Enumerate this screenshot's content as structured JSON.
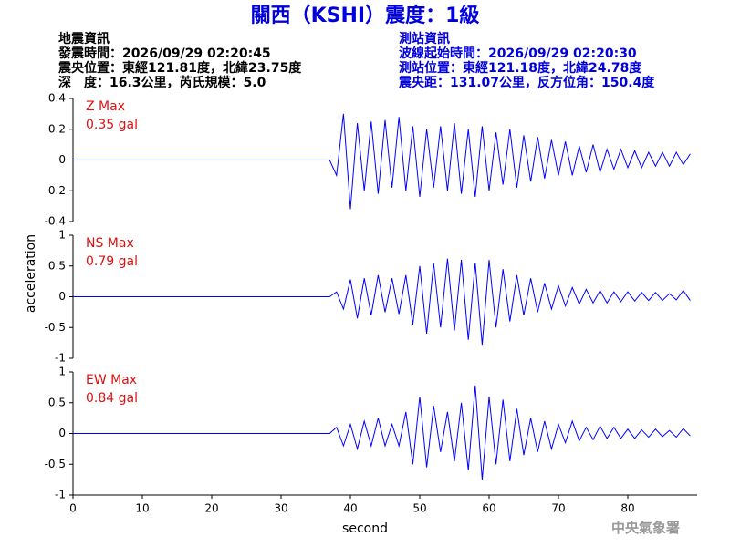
{
  "header": {
    "title": "關西（KSHI）震度：1級",
    "left": [
      "地震資訊",
      "發震時間：2026/09/29 02:20:45",
      "震央位置：東經121.81度，北緯23.75度",
      "深　度：16.3公里，芮氏規模：5.0"
    ],
    "right": [
      "測站資訊",
      "波線起始時間：2026/09/29 02:20:30",
      "測站位置：東經121.18度，北緯24.78度",
      "震央距：131.07公里，反方位角：150.4度"
    ]
  },
  "axis_labels": {
    "y": "acceleration",
    "x": "second"
  },
  "footer": "中央氣象署",
  "chart_data": [
    {
      "type": "line",
      "annotation": "Z Max",
      "max_label": "0.35 gal",
      "color": "#0000ff",
      "x": [
        0,
        37,
        38,
        39,
        40,
        41,
        42,
        43,
        44,
        45,
        46,
        47,
        48,
        49,
        50,
        51,
        52,
        53,
        54,
        55,
        56,
        57,
        58,
        59,
        60,
        61,
        62,
        63,
        64,
        65,
        66,
        67,
        68,
        69,
        70,
        71,
        72,
        73,
        74,
        75,
        76,
        77,
        78,
        79,
        80,
        81,
        82,
        83,
        84,
        85,
        86,
        87,
        88,
        89
      ],
      "values": [
        0,
        0,
        -0.1,
        0.3,
        -0.32,
        0.24,
        -0.2,
        0.25,
        -0.22,
        0.26,
        -0.18,
        0.28,
        -0.2,
        0.22,
        -0.24,
        0.2,
        -0.18,
        0.22,
        -0.2,
        0.24,
        -0.22,
        0.2,
        -0.24,
        0.22,
        -0.2,
        0.18,
        -0.16,
        0.2,
        -0.18,
        0.16,
        -0.14,
        0.15,
        -0.12,
        0.13,
        -0.1,
        0.12,
        -0.1,
        0.09,
        -0.08,
        0.1,
        -0.08,
        0.07,
        -0.06,
        0.07,
        -0.05,
        0.06,
        -0.05,
        0.05,
        -0.04,
        0.05,
        -0.04,
        0.05,
        -0.03,
        0.04
      ],
      "xlim": [
        0,
        90
      ],
      "ylim": [
        -0.4,
        0.4
      ],
      "yticks": [
        -0.4,
        -0.2,
        0,
        0.2,
        0.4
      ]
    },
    {
      "type": "line",
      "annotation": "NS Max",
      "max_label": "0.79 gal",
      "color": "#0000ff",
      "x": [
        0,
        37,
        38,
        39,
        40,
        41,
        42,
        43,
        44,
        45,
        46,
        47,
        48,
        49,
        50,
        51,
        52,
        53,
        54,
        55,
        56,
        57,
        58,
        59,
        60,
        61,
        62,
        63,
        64,
        65,
        66,
        67,
        68,
        69,
        70,
        71,
        72,
        73,
        74,
        75,
        76,
        77,
        78,
        79,
        80,
        81,
        82,
        83,
        84,
        85,
        86,
        87,
        88,
        89
      ],
      "values": [
        0,
        0,
        0.08,
        -0.2,
        0.28,
        -0.35,
        0.3,
        -0.3,
        0.35,
        -0.25,
        0.3,
        -0.28,
        0.35,
        -0.45,
        0.5,
        -0.6,
        0.55,
        -0.5,
        0.62,
        -0.55,
        0.6,
        -0.7,
        0.55,
        -0.78,
        0.6,
        -0.5,
        0.45,
        -0.4,
        0.35,
        -0.3,
        0.3,
        -0.25,
        0.22,
        -0.2,
        0.18,
        -0.15,
        0.15,
        -0.12,
        0.12,
        -0.1,
        0.1,
        -0.1,
        0.08,
        -0.08,
        0.08,
        -0.07,
        0.07,
        -0.06,
        0.07,
        -0.06,
        0.05,
        -0.05,
        0.1,
        -0.06
      ],
      "xlim": [
        0,
        90
      ],
      "ylim": [
        -1,
        1
      ],
      "yticks": [
        -1,
        -0.5,
        0,
        0.5,
        1
      ]
    },
    {
      "type": "line",
      "annotation": "EW Max",
      "max_label": "0.84 gal",
      "color": "#0000ff",
      "x": [
        0,
        37,
        38,
        39,
        40,
        41,
        42,
        43,
        44,
        45,
        46,
        47,
        48,
        49,
        50,
        51,
        52,
        53,
        54,
        55,
        56,
        57,
        58,
        59,
        60,
        61,
        62,
        63,
        64,
        65,
        66,
        67,
        68,
        69,
        70,
        71,
        72,
        73,
        74,
        75,
        76,
        77,
        78,
        79,
        80,
        81,
        82,
        83,
        84,
        85,
        86,
        87,
        88,
        89
      ],
      "values": [
        0,
        0,
        0.1,
        -0.2,
        0.15,
        -0.25,
        0.2,
        -0.2,
        0.25,
        -0.2,
        0.15,
        -0.2,
        0.35,
        -0.5,
        0.6,
        -0.55,
        0.45,
        -0.3,
        0.35,
        -0.45,
        0.5,
        -0.6,
        0.78,
        -0.75,
        0.6,
        -0.5,
        0.55,
        -0.45,
        0.4,
        -0.35,
        0.25,
        -0.3,
        0.2,
        -0.25,
        0.15,
        -0.15,
        0.2,
        -0.12,
        0.1,
        -0.1,
        0.12,
        -0.08,
        0.1,
        -0.08,
        0.07,
        -0.08,
        0.06,
        -0.06,
        0.07,
        -0.05,
        0.05,
        -0.06,
        0.08,
        -0.04
      ],
      "xlim": [
        0,
        90
      ],
      "ylim": [
        -1,
        1
      ],
      "yticks": [
        -1,
        -0.5,
        0,
        0.5,
        1
      ],
      "xticks": [
        0,
        10,
        20,
        30,
        40,
        50,
        60,
        70,
        80
      ]
    }
  ]
}
